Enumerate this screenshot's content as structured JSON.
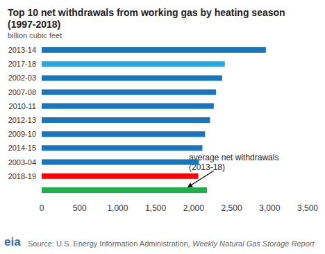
{
  "chart_data": {
    "type": "bar",
    "title": "Top 10 net withdrawals from working gas by heating season\n(1997-2018)",
    "subtitle": "billion cubic feet",
    "orientation": "horizontal",
    "categories": [
      "2013-14",
      "2017-18",
      "2002-03",
      "2007-08",
      "2010-11",
      "2012-13",
      "2009-10",
      "2014-15",
      "2003-04",
      "2018-19",
      null
    ],
    "values": [
      2950,
      2410,
      2375,
      2295,
      2265,
      2215,
      2150,
      2115,
      2070,
      2060,
      2175
    ],
    "colors": [
      "#1b75bb",
      "#29a8e0",
      "#1b75bb",
      "#1b75bb",
      "#1b75bb",
      "#1b75bb",
      "#1b75bb",
      "#1b75bb",
      "#1b75bb",
      "#ff0000",
      "#1fae4b"
    ],
    "xlim": [
      0,
      3500
    ],
    "xticks": [
      0,
      500,
      {
        "value": 1000,
        "label": "1,000"
      },
      {
        "value": 1500,
        "label": "1,500"
      },
      {
        "value": 2000,
        "label": "2,000"
      },
      {
        "value": 2500,
        "label": "2,500"
      },
      {
        "value": 3000,
        "label": "3,000"
      },
      {
        "value": 3500,
        "label": "3,500"
      }
    ],
    "grid": false,
    "annotations": [
      {
        "text": "average net withdrawals\n(2013-18)"
      }
    ],
    "source": [
      "Source: U.S. Energy Information Administration,",
      "Weekly Natural Gas Storage Report"
    ],
    "logo": "eia"
  }
}
